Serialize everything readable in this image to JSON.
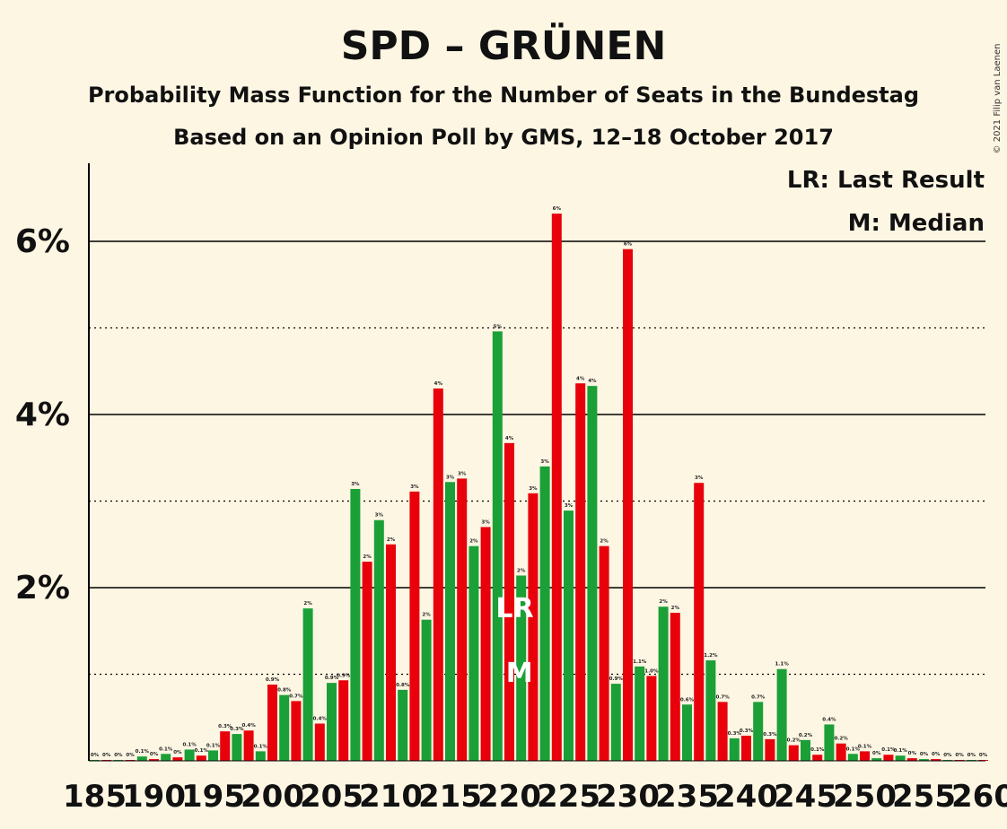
{
  "chart_data": {
    "type": "bar",
    "title": "SPD – GRÜNEN",
    "subtitle1": "Probability Mass Function for the Number of Seats in the Bundestag",
    "subtitle2": "Based on an Opinion Poll by GMS, 12–18 October 2017",
    "copyright": "© 2021 Filip van Laenen",
    "legend": {
      "lr": "LR: Last Result",
      "m": "M: Median",
      "placement": "top-right"
    },
    "ylim": [
      0,
      6.9
    ],
    "yticks": [
      2,
      4,
      6
    ],
    "ytick_labels": [
      "2%",
      "4%",
      "6%"
    ],
    "ygrid_minor": [
      1,
      3,
      5
    ],
    "x_tick_labels": [
      "185",
      "190",
      "195",
      "200",
      "205",
      "210",
      "215",
      "220",
      "225",
      "230",
      "235",
      "240",
      "245",
      "250",
      "255",
      "260"
    ],
    "seats_start": 185,
    "seats_end": 260,
    "values": [
      0.01,
      0.01,
      0.01,
      0.01,
      0.05,
      0.02,
      0.08,
      0.04,
      0.13,
      0.06,
      0.12,
      0.34,
      0.31,
      0.35,
      0.11,
      0.88,
      0.76,
      0.69,
      1.76,
      0.43,
      0.9,
      0.93,
      3.14,
      2.3,
      2.78,
      2.5,
      0.82,
      3.11,
      1.63,
      4.3,
      3.22,
      3.26,
      2.48,
      2.7,
      4.96,
      3.67,
      2.14,
      3.09,
      3.4,
      6.32,
      2.89,
      4.36,
      4.33,
      2.48,
      0.89,
      5.91,
      1.09,
      0.98,
      1.78,
      1.71,
      0.65,
      3.21,
      1.16,
      0.68,
      0.26,
      0.29,
      0.68,
      0.25,
      1.06,
      0.18,
      0.24,
      0.07,
      0.42,
      0.2,
      0.08,
      0.11,
      0.03,
      0.07,
      0.06,
      0.03,
      0.02,
      0.02,
      0.01,
      0.01,
      0.01,
      0.01
    ],
    "value_labels": [
      "0%",
      "0%",
      "0%",
      "0%",
      "0.1%",
      "0%",
      "0.1%",
      "0%",
      "0.1%",
      "0.1%",
      "0.1%",
      "0.3%",
      "0.3%",
      "0.4%",
      "0.1%",
      "0.9%",
      "0.8%",
      "0.7%",
      "2%",
      "0.4%",
      "0.9%",
      "0.9%",
      "3%",
      "2%",
      "3%",
      "2%",
      "0.8%",
      "3%",
      "2%",
      "4%",
      "3%",
      "3%",
      "2%",
      "3%",
      "5%",
      "4%",
      "2%",
      "3%",
      "3%",
      "6%",
      "3%",
      "4%",
      "4%",
      "2%",
      "0.9%",
      "6%",
      "1.1%",
      "1.0%",
      "2%",
      "2%",
      "0.6%",
      "3%",
      "1.2%",
      "0.7%",
      "0.3%",
      "0.3%",
      "0.7%",
      "0.3%",
      "1.1%",
      "0.2%",
      "0.2%",
      "0.1%",
      "0.4%",
      "0.2%",
      "0.1%",
      "0.1%",
      "0%",
      "0.1%",
      "0.1%",
      "0%",
      "0%",
      "0%",
      "0%",
      "0%",
      "0%",
      "0%"
    ],
    "last_result_seat": 220,
    "last_result_label": "LR",
    "median_seat": 221,
    "median_label": "M",
    "colors": {
      "even": "#e8000b",
      "odd": "#1aa037",
      "background": "#fdf6e3",
      "axis": "#000000"
    }
  }
}
